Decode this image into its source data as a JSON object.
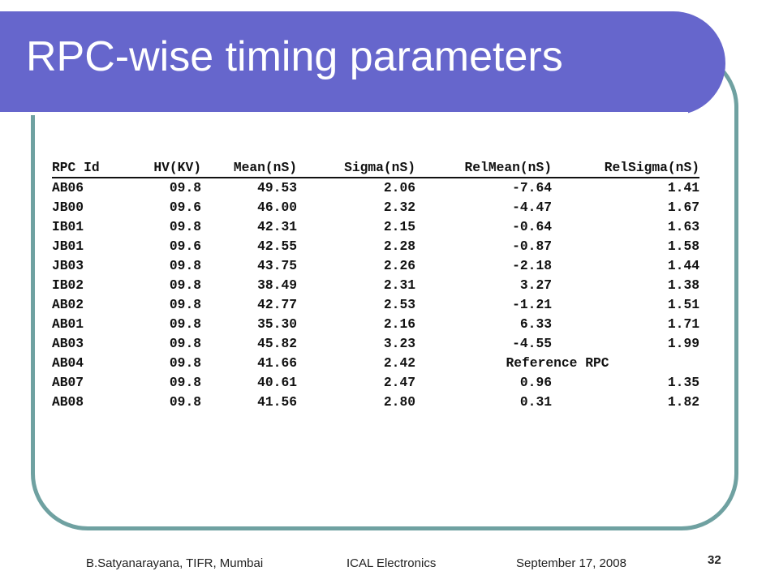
{
  "slide": {
    "title": "RPC-wise timing parameters"
  },
  "table": {
    "headers": [
      "RPC Id",
      "HV(KV)",
      "Mean(nS)",
      "Sigma(nS)",
      "RelMean(nS)",
      "RelSigma(nS)"
    ],
    "rows": [
      [
        "AB06",
        "09.8",
        "49.53",
        "2.06",
        "-7.64",
        "1.41"
      ],
      [
        "JB00",
        "09.6",
        "46.00",
        "2.32",
        "-4.47",
        "1.67"
      ],
      [
        "IB01",
        "09.8",
        "42.31",
        "2.15",
        "-0.64",
        "1.63"
      ],
      [
        "JB01",
        "09.6",
        "42.55",
        "2.28",
        "-0.87",
        "1.58"
      ],
      [
        "JB03",
        "09.8",
        "43.75",
        "2.26",
        "-2.18",
        "1.44"
      ],
      [
        "IB02",
        "09.8",
        "38.49",
        "2.31",
        "3.27",
        "1.38"
      ],
      [
        "AB02",
        "09.8",
        "42.77",
        "2.53",
        "-1.21",
        "1.51"
      ],
      [
        "AB01",
        "09.8",
        "35.30",
        "2.16",
        "6.33",
        "1.71"
      ],
      [
        "AB03",
        "09.8",
        "45.82",
        "3.23",
        "-4.55",
        "1.99"
      ],
      [
        "AB04",
        "09.8",
        "41.66",
        "2.42",
        "Reference RPC"
      ],
      [
        "AB07",
        "09.8",
        "40.61",
        "2.47",
        "0.96",
        "1.35"
      ],
      [
        "AB08",
        "09.8",
        "41.56",
        "2.80",
        "0.31",
        "1.82"
      ]
    ]
  },
  "footer": {
    "author": "B.Satyanarayana, TIFR, Mumbai",
    "event": "ICAL Electronics",
    "date": "September 17, 2008",
    "page_number": "32"
  },
  "colors": {
    "title_band": "#6666cc",
    "frame_border": "#6fa1a1",
    "title_text": "#ffffff"
  }
}
